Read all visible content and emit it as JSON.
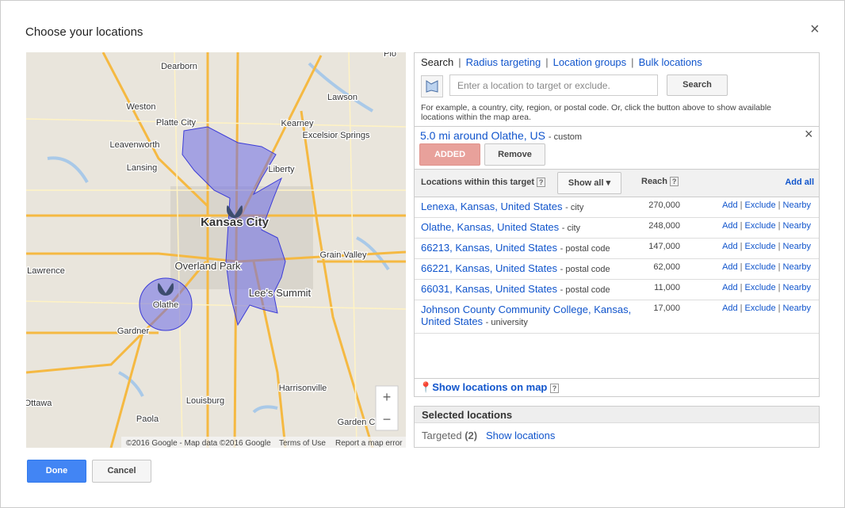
{
  "dialog": {
    "title": "Choose your locations",
    "close": "×"
  },
  "map": {
    "labels": [
      "Dearborn",
      "Weston",
      "Platte City",
      "Leavenworth",
      "Lansing",
      "Kearney",
      "Excelsior Springs",
      "Lawson",
      "Liberty",
      "Kansas City",
      "Overland Park",
      "Olathe",
      "Lee's Summit",
      "Grain Valley",
      "Lawrence",
      "Gardner",
      "Louisburg",
      "Harrisonville",
      "Ottawa",
      "Paola",
      "Garden City",
      "Plo"
    ],
    "zoom_in": "+",
    "zoom_out": "−",
    "attribution": "©2016 Google - Map data ©2016 Google",
    "terms": "Terms of Use",
    "report": "Report a map error"
  },
  "tabs": [
    "Search",
    "Radius targeting",
    "Location groups",
    "Bulk locations"
  ],
  "search": {
    "placeholder": "Enter a location to target or exclude.",
    "button": "Search",
    "hint": "For example, a country, city, region, or postal code. Or, click the button above to show available locations within the map area."
  },
  "target": {
    "name": "5.0 mi around Olathe, US",
    "tag": "- custom",
    "added": "ADDED",
    "remove": "Remove",
    "close": "×"
  },
  "table": {
    "header": "Locations within this target",
    "help": "?",
    "filter": "Show all",
    "reach": "Reach",
    "add_all": "Add all",
    "actions": [
      "Add",
      "Exclude",
      "Nearby"
    ],
    "separator": "|",
    "rows": [
      {
        "name": "Lenexa, Kansas, United States",
        "type": "- city",
        "reach": "270,000"
      },
      {
        "name": "Olathe, Kansas, United States",
        "type": "- city",
        "reach": "248,000"
      },
      {
        "name": "66213, Kansas, United States",
        "type": "- postal code",
        "reach": "147,000"
      },
      {
        "name": "66221, Kansas, United States",
        "type": "- postal code",
        "reach": "62,000"
      },
      {
        "name": "66031, Kansas, United States",
        "type": "- postal code",
        "reach": "11,000"
      },
      {
        "name": "Johnson County Community College, Kansas, United States",
        "type": "- university",
        "reach": "17,000"
      }
    ]
  },
  "show_on_map": "Show locations on map",
  "selected": {
    "title": "Selected locations",
    "targeted": "Targeted",
    "count": "(2)",
    "show": "Show locations"
  },
  "buttons": {
    "done": "Done",
    "cancel": "Cancel"
  }
}
